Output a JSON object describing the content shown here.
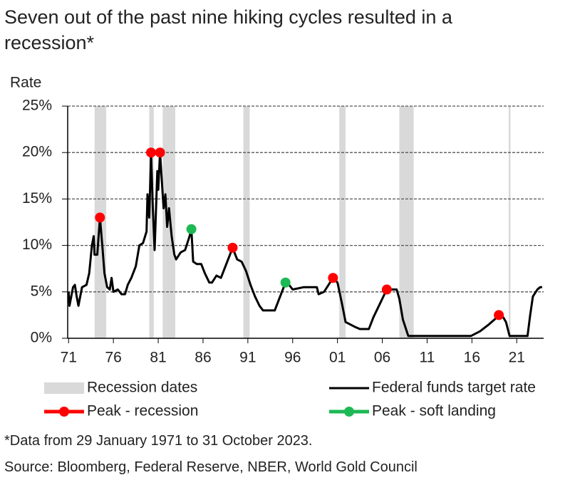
{
  "chart_data": {
    "type": "line",
    "title": "Seven out of the past nine hiking cycles resulted in a recession*",
    "y_label": "Rate",
    "footnote": "*Data from 29 January 1971 to 31 October 2023.",
    "source": "Source: Bloomberg, Federal Reserve, NBER, World Gold Council",
    "xlim": [
      1970.9,
      2024.0
    ],
    "xticks": [
      {
        "value": 1971,
        "label": "71"
      },
      {
        "value": 1976,
        "label": "76"
      },
      {
        "value": 1981,
        "label": "81"
      },
      {
        "value": 1986,
        "label": "86"
      },
      {
        "value": 1991,
        "label": "91"
      },
      {
        "value": 1996,
        "label": "96"
      },
      {
        "value": 2001,
        "label": "01"
      },
      {
        "value": 2006,
        "label": "06"
      },
      {
        "value": 2011,
        "label": "11"
      },
      {
        "value": 2016,
        "label": "16"
      },
      {
        "value": 2021,
        "label": "21"
      }
    ],
    "ylim": [
      0,
      25
    ],
    "yticks": [
      {
        "value": 0,
        "label": "0%"
      },
      {
        "value": 5,
        "label": "5%"
      },
      {
        "value": 10,
        "label": "10%"
      },
      {
        "value": 15,
        "label": "15%"
      },
      {
        "value": 20,
        "label": "20%"
      },
      {
        "value": 25,
        "label": "25%"
      }
    ],
    "grid": true,
    "recessions": {
      "name": "Recession dates",
      "color": "#d9d9d9",
      "periods": [
        [
          1973.9,
          1975.2
        ],
        [
          1980.0,
          1980.5
        ],
        [
          1981.5,
          1982.9
        ],
        [
          1990.5,
          1991.2
        ],
        [
          2001.2,
          2001.9
        ],
        [
          2007.9,
          2009.5
        ],
        [
          2020.1,
          2020.3
        ]
      ]
    },
    "series": [
      {
        "name": "Federal funds target rate",
        "color": "#000000",
        "x": [
          1971.0,
          1971.1,
          1971.5,
          1971.7,
          1971.9,
          1972.1,
          1972.3,
          1972.5,
          1973.0,
          1973.3,
          1973.6,
          1973.8,
          1973.9,
          1974.2,
          1974.5,
          1974.8,
          1975.0,
          1975.3,
          1975.6,
          1975.8,
          1976.0,
          1976.5,
          1976.9,
          1977.3,
          1977.6,
          1978.0,
          1978.5,
          1978.9,
          1979.3,
          1979.7,
          1979.8,
          1980.0,
          1980.2,
          1980.4,
          1980.6,
          1980.9,
          1981.0,
          1981.2,
          1981.4,
          1981.6,
          1981.8,
          1982.0,
          1982.2,
          1982.5,
          1982.8,
          1983.0,
          1983.5,
          1984.0,
          1984.5,
          1984.7,
          1984.9,
          1985.3,
          1985.8,
          1986.2,
          1986.7,
          1987.0,
          1987.5,
          1988.0,
          1988.5,
          1989.3,
          1989.8,
          1990.3,
          1990.8,
          1991.3,
          1991.8,
          1992.3,
          1992.7,
          1994.0,
          1994.5,
          1995.2,
          1995.6,
          1996.0,
          1997.2,
          1998.7,
          1998.9,
          1999.5,
          2000.0,
          2000.5,
          2001.0,
          2001.5,
          2001.9,
          2002.9,
          2003.5,
          2004.5,
          2005.0,
          2006.5,
          2007.6,
          2007.9,
          2008.3,
          2008.9,
          2015.9,
          2016.9,
          2017.9,
          2018.5,
          2019.0,
          2019.5,
          2019.8,
          2020.2,
          2022.2,
          2022.5,
          2022.8,
          2023.3,
          2023.6,
          2023.83
        ],
        "values": [
          5,
          3.5,
          5.5,
          5.75,
          4.5,
          3.5,
          4.5,
          5.5,
          5.75,
          7,
          10,
          11,
          9,
          9,
          13,
          9.5,
          7,
          5.5,
          5.25,
          6.5,
          5,
          5.25,
          4.75,
          4.75,
          5.75,
          6.5,
          7.75,
          10,
          10.25,
          11.5,
          15.5,
          13,
          20,
          14,
          9.5,
          18,
          16,
          20,
          17,
          14,
          15.5,
          12,
          14,
          11,
          9,
          8.5,
          9.25,
          9.5,
          11,
          11.75,
          8.25,
          8,
          8,
          7,
          6,
          6,
          6.75,
          6.5,
          7.75,
          9.75,
          8.5,
          8.25,
          7.25,
          5.75,
          4.5,
          3.5,
          3,
          3,
          4.25,
          6,
          5.75,
          5.25,
          5.5,
          5.5,
          4.75,
          5,
          5.75,
          6.5,
          6,
          3.75,
          1.75,
          1.25,
          1,
          1,
          2.25,
          5.25,
          5.25,
          4.25,
          2,
          0.25,
          0.25,
          0.75,
          1.5,
          2,
          2.5,
          2.25,
          1.75,
          0.25,
          0.25,
          2.5,
          4.5,
          5.25,
          5.5,
          5.5
        ]
      },
      {
        "name": "Peak - recession",
        "color": "#ff0000",
        "x": [
          1974.5,
          1980.2,
          1981.2,
          1989.3,
          2000.5,
          2006.5,
          2019.0
        ],
        "values": [
          13,
          20,
          20,
          9.75,
          6.5,
          5.25,
          2.5
        ]
      },
      {
        "name": "Peak - soft landing",
        "color": "#1db954",
        "x": [
          1984.7,
          1995.2
        ],
        "values": [
          11.75,
          6
        ]
      }
    ]
  }
}
